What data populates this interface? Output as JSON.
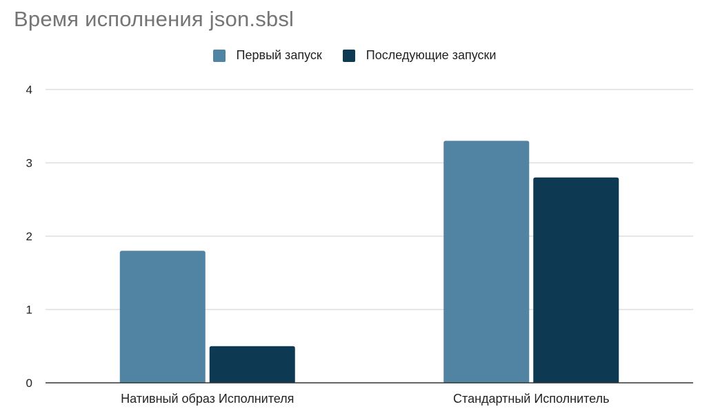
{
  "chart_data": {
    "type": "bar",
    "title": "Время исполнения json.sbsl",
    "xlabel": "",
    "ylabel": "",
    "categories": [
      "Нативный образ Исполнителя",
      "Стандартный Исполнитель"
    ],
    "series": [
      {
        "name": "Первый запуск",
        "values": [
          1.8,
          3.3
        ],
        "color": "#5184a3"
      },
      {
        "name": "Последующие запуски",
        "values": [
          0.5,
          2.8
        ],
        "color": "#0d3a52"
      }
    ],
    "ylim": [
      0,
      4
    ],
    "yticks": [
      "0",
      "1",
      "2",
      "3",
      "4"
    ],
    "grid": true,
    "legend_position": "top-center",
    "colors": {
      "gridline": "#dddddd",
      "baseline": "#333333",
      "title": "#757575"
    }
  }
}
